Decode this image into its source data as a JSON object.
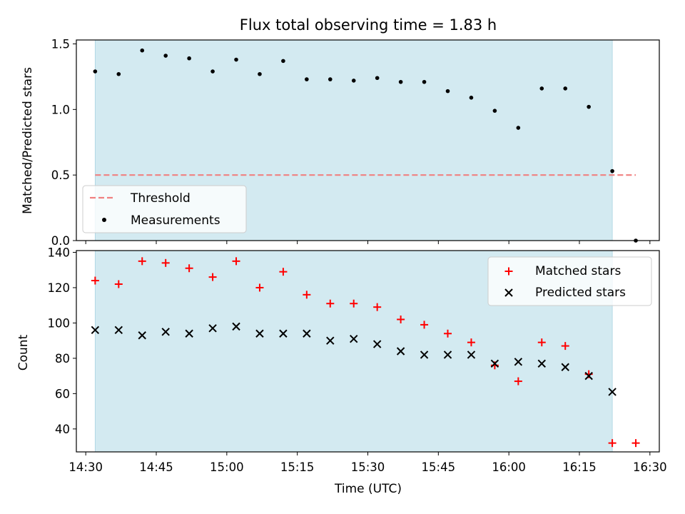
{
  "chart_data": [
    {
      "type": "scatter",
      "title": "Flux total observing time = 1.83 h",
      "xlabel": "",
      "ylabel": "Matched/Predicted stars",
      "ylim": [
        0,
        1.53
      ],
      "yticks": [
        "0.0",
        "0.5",
        "1.0",
        "1.5"
      ],
      "ytick_values": [
        0,
        0.5,
        1.0,
        1.5
      ],
      "xlim": [
        "14:28",
        "16:32"
      ],
      "shaded_span": [
        "14:32",
        "16:22"
      ],
      "shade_color": "#d3eaf1",
      "legend_position": "lower-left",
      "threshold": {
        "name": "Threshold",
        "value": 0.5,
        "x": [
          "14:32",
          "16:27"
        ],
        "color": "#f08080",
        "style": "dashed"
      },
      "series": [
        {
          "name": "Measurements",
          "color": "#000000",
          "marker": "dot",
          "x": [
            "14:32",
            "14:37",
            "14:42",
            "14:47",
            "14:52",
            "14:57",
            "15:02",
            "15:07",
            "15:12",
            "15:17",
            "15:22",
            "15:27",
            "15:32",
            "15:37",
            "15:42",
            "15:47",
            "15:52",
            "15:57",
            "16:02",
            "16:07",
            "16:12",
            "16:17",
            "16:22",
            "16:27"
          ],
          "y": [
            1.29,
            1.27,
            1.45,
            1.41,
            1.39,
            1.29,
            1.38,
            1.27,
            1.37,
            1.23,
            1.23,
            1.22,
            1.24,
            1.21,
            1.21,
            1.14,
            1.09,
            0.99,
            0.86,
            1.16,
            1.16,
            1.02,
            0.53,
            0.0
          ]
        }
      ]
    },
    {
      "type": "scatter",
      "title": "",
      "xlabel": "Time (UTC)",
      "ylabel": "Count",
      "ylim": [
        27,
        141
      ],
      "yticks": [
        "40",
        "60",
        "80",
        "100",
        "120",
        "140"
      ],
      "ytick_values": [
        40,
        60,
        80,
        100,
        120,
        140
      ],
      "xlim": [
        "14:28",
        "16:32"
      ],
      "xticks": [
        "14:30",
        "14:45",
        "15:00",
        "15:15",
        "15:30",
        "15:45",
        "16:00",
        "16:15",
        "16:30"
      ],
      "shaded_span": [
        "14:32",
        "16:22"
      ],
      "shade_color": "#d3eaf1",
      "legend_position": "top-right",
      "series": [
        {
          "name": "Matched stars",
          "color": "#ff0000",
          "marker": "plus",
          "x": [
            "14:32",
            "14:37",
            "14:42",
            "14:47",
            "14:52",
            "14:57",
            "15:02",
            "15:07",
            "15:12",
            "15:17",
            "15:22",
            "15:27",
            "15:32",
            "15:37",
            "15:42",
            "15:47",
            "15:52",
            "15:57",
            "16:02",
            "16:07",
            "16:12",
            "16:17",
            "16:22",
            "16:27"
          ],
          "y": [
            124,
            122,
            135,
            134,
            131,
            126,
            135,
            120,
            129,
            116,
            111,
            111,
            109,
            102,
            99,
            94,
            89,
            76,
            67,
            89,
            87,
            71,
            32,
            32
          ]
        },
        {
          "name": "Predicted stars",
          "color": "#000000",
          "marker": "x",
          "x": [
            "14:32",
            "14:37",
            "14:42",
            "14:47",
            "14:52",
            "14:57",
            "15:02",
            "15:07",
            "15:12",
            "15:17",
            "15:22",
            "15:27",
            "15:32",
            "15:37",
            "15:42",
            "15:47",
            "15:52",
            "15:57",
            "16:02",
            "16:07",
            "16:12",
            "16:17",
            "16:22"
          ],
          "y": [
            96,
            96,
            93,
            95,
            94,
            97,
            98,
            94,
            94,
            94,
            90,
            91,
            88,
            84,
            82,
            82,
            82,
            77,
            78,
            77,
            75,
            70,
            61
          ]
        }
      ]
    }
  ]
}
